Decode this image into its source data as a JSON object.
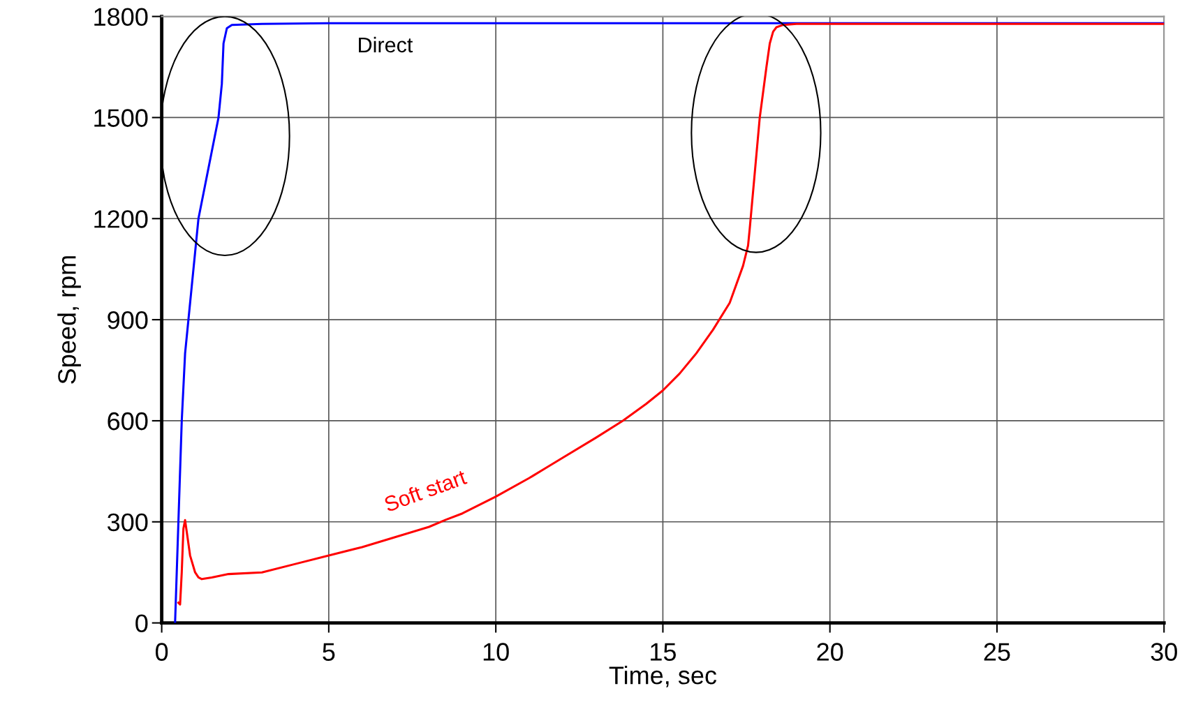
{
  "chart_data": {
    "type": "line",
    "xlabel": "Time, sec",
    "ylabel": "Speed, rpm",
    "xlim": [
      0,
      30
    ],
    "xticks": [
      0,
      5,
      10,
      15,
      20,
      25,
      30
    ],
    "ylim": [
      0,
      1800
    ],
    "yticks": [
      0,
      300,
      600,
      900,
      1200,
      1500,
      1800
    ],
    "grid": true,
    "marker": "none",
    "line_style": "solid",
    "series": [
      {
        "name": "Direct",
        "color": "#0000ff",
        "x": [
          0.4,
          0.5,
          0.6,
          0.7,
          0.8,
          0.9,
          1.0,
          1.1,
          1.3,
          1.5,
          1.7,
          1.8,
          1.85,
          1.95,
          2.1,
          3,
          5,
          10,
          15,
          20,
          25,
          30
        ],
        "values": [
          0,
          300,
          600,
          800,
          900,
          1000,
          1100,
          1200,
          1300,
          1400,
          1500,
          1600,
          1720,
          1765,
          1775,
          1778,
          1780,
          1780,
          1780,
          1780,
          1780,
          1780
        ]
      },
      {
        "name": "Soft start",
        "color": "#ff0000",
        "x": [
          0.5,
          0.55,
          0.6,
          0.65,
          0.7,
          0.75,
          0.85,
          1.0,
          1.1,
          1.2,
          1.5,
          2,
          3,
          4,
          5,
          6,
          7,
          8,
          8.5,
          9,
          10,
          11,
          11.5,
          12,
          13,
          13.8,
          14.5,
          15,
          15.5,
          16,
          16.5,
          17,
          17.4,
          17.55,
          17.6,
          17.9,
          18.1,
          18.2,
          18.3,
          18.4,
          18.6,
          19,
          20,
          25,
          30
        ],
        "values": [
          60,
          55,
          150,
          280,
          305,
          270,
          200,
          150,
          135,
          130,
          135,
          145,
          150,
          175,
          200,
          225,
          255,
          285,
          306,
          325,
          375,
          430,
          460,
          490,
          550,
          600,
          650,
          690,
          740,
          800,
          870,
          950,
          1060,
          1120,
          1170,
          1500,
          1650,
          1720,
          1755,
          1768,
          1775,
          1778,
          1778,
          1778,
          1778
        ]
      }
    ]
  }
}
